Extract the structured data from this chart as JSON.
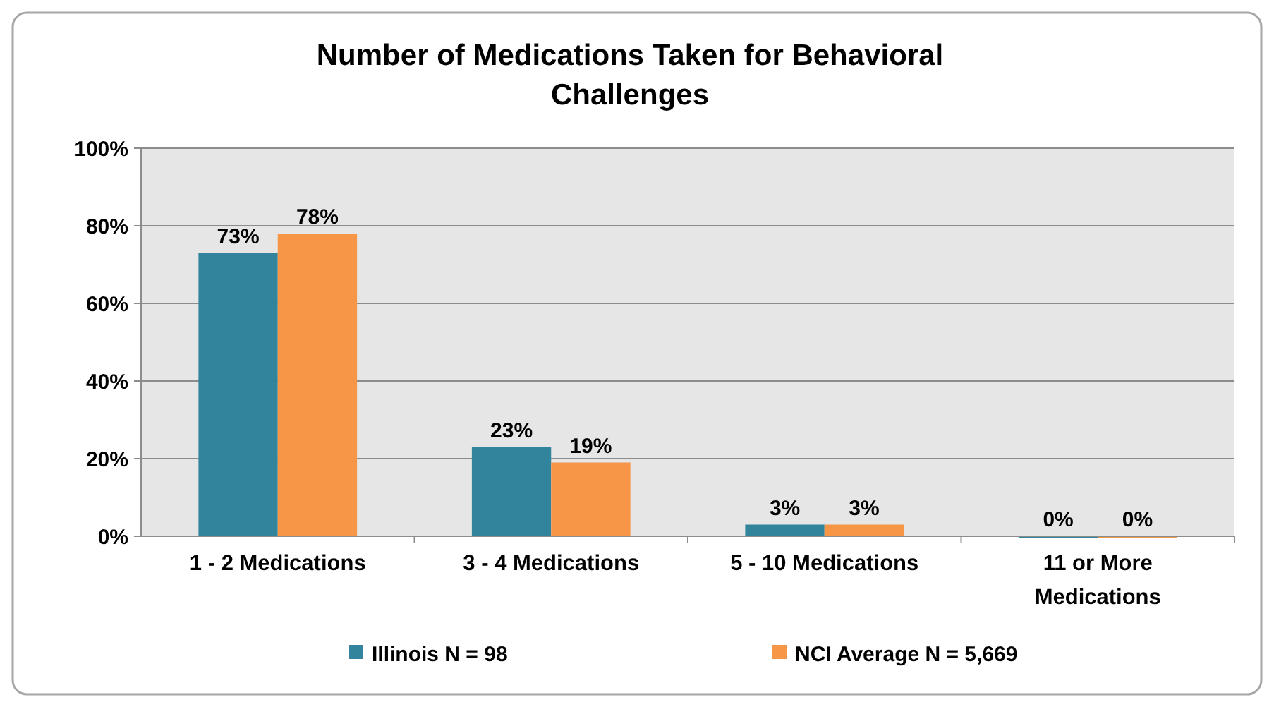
{
  "chart_data": {
    "type": "bar",
    "title": "Number of Medications Taken for Behavioral Challenges",
    "categories": [
      "1 - 2 Medications",
      "3 - 4 Medications",
      "5 - 10 Medications",
      "11 or More Medications"
    ],
    "series": [
      {
        "name": "Illinois N = 98",
        "color": "#31849b",
        "values": [
          73,
          23,
          3,
          0
        ],
        "value_labels": [
          "73%",
          "23%",
          "3%",
          "0%"
        ]
      },
      {
        "name": "NCI Average N = 5,669",
        "color": "#f79646",
        "values": [
          78,
          19,
          3,
          0
        ],
        "value_labels": [
          "78%",
          "19%",
          "3%",
          "0%"
        ]
      }
    ],
    "ylim": [
      0,
      100
    ],
    "yticks": [
      {
        "value": 0,
        "label": "0%"
      },
      {
        "value": 20,
        "label": "20%"
      },
      {
        "value": 40,
        "label": "40%"
      },
      {
        "value": 60,
        "label": "60%"
      },
      {
        "value": 80,
        "label": "80%"
      },
      {
        "value": 100,
        "label": "100%"
      }
    ],
    "grid": "y",
    "legend": "bottom"
  }
}
